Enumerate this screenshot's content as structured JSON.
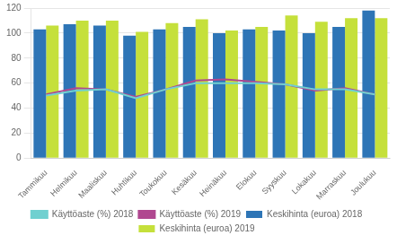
{
  "chart_data": {
    "type": "bar",
    "categories": [
      "Tammikuu",
      "Helmikuu",
      "Maaliskuu",
      "Huhtikuu",
      "Toukokuu",
      "Kesäkuu",
      "Heinäkuu",
      "Elokuu",
      "Syyskuu",
      "Lokakuu",
      "Marraskuu",
      "Joulukuu"
    ],
    "series": [
      {
        "name": "Keskihinta (euroa) 2018",
        "type": "bar",
        "color": "#2e75b6",
        "values": [
          103,
          107,
          106,
          98,
          103,
          105,
          100,
          103,
          102,
          100,
          105,
          118
        ]
      },
      {
        "name": "Keskihinta (euroa) 2019",
        "type": "bar",
        "color": "#c5e03b",
        "values": [
          106,
          110,
          110,
          101,
          108,
          111,
          102,
          105,
          114,
          109,
          112,
          112
        ]
      },
      {
        "name": "Käyttöaste (%) 2018",
        "type": "line",
        "color": "#70d0d0",
        "marker": "none",
        "line_style": "solid",
        "values": [
          50,
          54,
          55,
          48,
          55,
          60,
          60,
          60,
          59,
          55,
          55,
          51
        ]
      },
      {
        "name": "Käyttöaste (%) 2019",
        "type": "line",
        "color": "#b04890",
        "marker": "none",
        "line_style": "solid",
        "values": [
          51,
          56,
          55,
          49,
          55,
          62,
          63,
          61,
          59,
          54,
          56,
          51
        ]
      }
    ],
    "ylim": [
      0,
      120
    ],
    "yticks": [
      0,
      20,
      40,
      60,
      80,
      100,
      120
    ],
    "grid": true,
    "legend": "bottom"
  }
}
